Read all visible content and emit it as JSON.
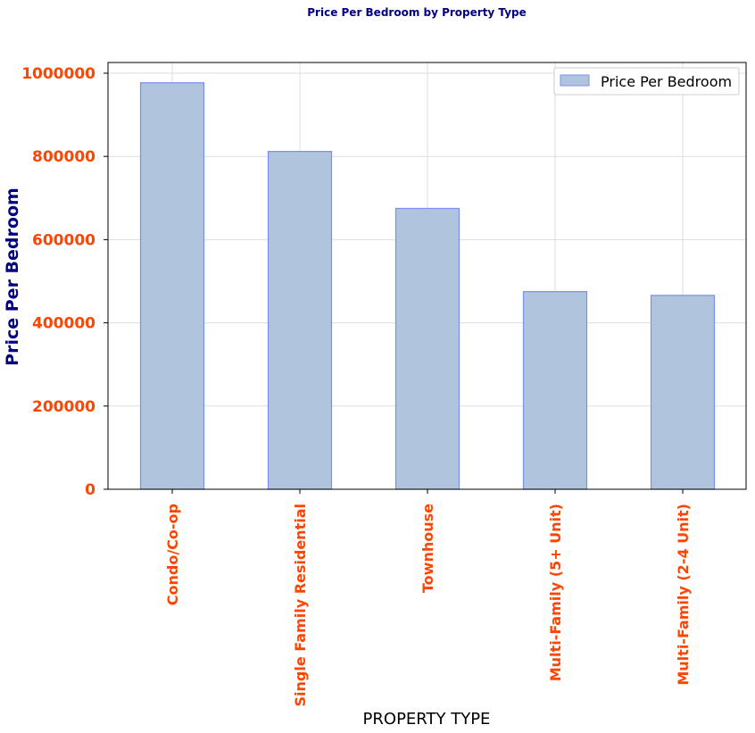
{
  "chart_data": {
    "type": "bar",
    "title": "Price Per Bedroom by Property Type",
    "xlabel": "PROPERTY TYPE",
    "ylabel": "Price Per Bedroom",
    "categories": [
      "Condo/Co-op",
      "Single Family Residential",
      "Townhouse",
      "Multi-Family (5+ Unit)",
      "Multi-Family (2-4 Unit)"
    ],
    "series": [
      {
        "name": "Price Per Bedroom",
        "values": [
          977000,
          812000,
          675000,
          475000,
          466000
        ]
      }
    ],
    "ylim": [
      0,
      1000000
    ],
    "yticks": [
      0,
      200000,
      400000,
      600000,
      800000,
      1000000
    ],
    "ytick_labels": [
      "0",
      "200000",
      "400000",
      "600000",
      "800000",
      "1000000"
    ],
    "grid": true,
    "legend_position": "top-right",
    "colors": {
      "bar_fill": "#b0c4de",
      "bar_edge": "#7b8ff0",
      "title": "#000080",
      "ylabel": "#000080",
      "tick_labels": "#ff4500",
      "xlabel": "#000000",
      "grid": "#dddddd",
      "axes": "#000000"
    }
  }
}
